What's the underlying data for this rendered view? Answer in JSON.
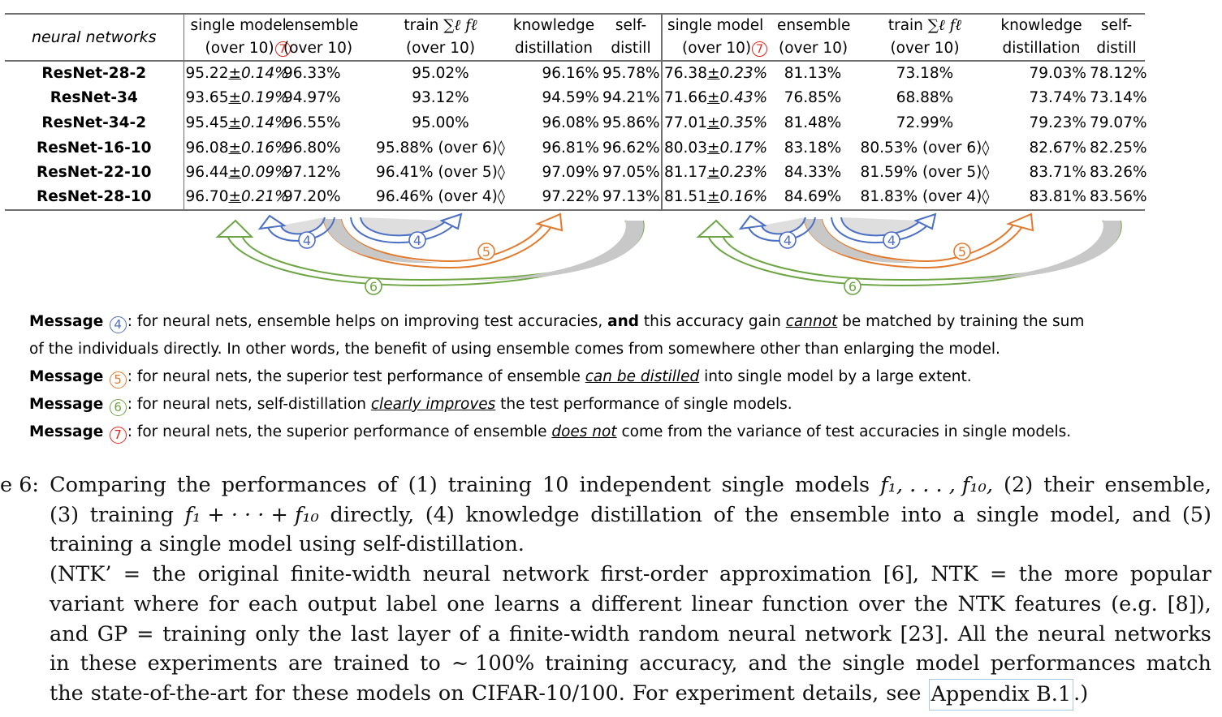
{
  "table": {
    "corner_label": "neural networks",
    "headers": {
      "single_model": [
        "single model",
        "(over 10)"
      ],
      "ensemble": [
        "ensemble",
        "(over 10)"
      ],
      "train_sum": [
        "train ",
        "(over 10)"
      ],
      "train_sum_math": "∑ℓ fℓ",
      "kd": [
        "knowledge",
        "distillation"
      ],
      "self_distill": [
        "self-",
        "distill"
      ]
    },
    "marker_7": "7",
    "rows": [
      {
        "model": "ResNet-28-2",
        "c10_single": "95.22",
        "c10_pm": "±",
        "c10_std": "0.14%",
        "c10_ens": "96.33%",
        "c10_train": "95.02%",
        "c10_kd": "96.16%",
        "c10_sd": "95.78%",
        "c100_single": "76.38",
        "c100_pm": "±",
        "c100_std": "0.23%",
        "c100_ens": "81.13%",
        "c100_train": "73.18%",
        "c100_kd": "79.03%",
        "c100_sd": "78.12%"
      },
      {
        "model": "ResNet-34",
        "c10_single": "93.65",
        "c10_pm": "±",
        "c10_std": "0.19%",
        "c10_ens": "94.97%",
        "c10_train": "93.12%",
        "c10_kd": "94.59%",
        "c10_sd": "94.21%",
        "c100_single": "71.66",
        "c100_pm": "±",
        "c100_std": "0.43%",
        "c100_ens": "76.85%",
        "c100_train": "68.88%",
        "c100_kd": "73.74%",
        "c100_sd": "73.14%"
      },
      {
        "model": "ResNet-34-2",
        "c10_single": "95.45",
        "c10_pm": "±",
        "c10_std": "0.14%",
        "c10_ens": "96.55%",
        "c10_train": "95.00%",
        "c10_kd": "96.08%",
        "c10_sd": "95.86%",
        "c100_single": "77.01",
        "c100_pm": "±",
        "c100_std": "0.35%",
        "c100_ens": "81.48%",
        "c100_train": "72.99%",
        "c100_kd": "79.23%",
        "c100_sd": "79.07%"
      },
      {
        "model": "ResNet-16-10",
        "c10_single": "96.08",
        "c10_pm": "±",
        "c10_std": "0.16%",
        "c10_ens": "96.80%",
        "c10_train": "95.88% (over 6)◊",
        "c10_kd": "96.81%",
        "c10_sd": "96.62%",
        "c100_single": "80.03",
        "c100_pm": "±",
        "c100_std": "0.17%",
        "c100_ens": "83.18%",
        "c100_train": "80.53% (over 6)◊",
        "c100_kd": "82.67%",
        "c100_sd": "82.25%"
      },
      {
        "model": "ResNet-22-10",
        "c10_single": "96.44",
        "c10_pm": "±",
        "c10_std": "0.09%",
        "c10_ens": "97.12%",
        "c10_train": "96.41% (over 5)◊",
        "c10_kd": "97.09%",
        "c10_sd": "97.05%",
        "c100_single": "81.17",
        "c100_pm": "±",
        "c100_std": "0.23%",
        "c100_ens": "84.33%",
        "c100_train": "81.59% (over 5)◊",
        "c100_kd": "83.71%",
        "c100_sd": "83.26%"
      },
      {
        "model": "ResNet-28-10",
        "c10_single": "96.70",
        "c10_pm": "±",
        "c10_std": "0.21%",
        "c10_ens": "97.20%",
        "c10_train": "96.46% (over 4)◊",
        "c10_kd": "97.22%",
        "c10_sd": "97.13%",
        "c100_single": "81.51",
        "c100_pm": "±",
        "c100_std": "0.16%",
        "c100_ens": "84.69%",
        "c100_train": "81.83% (over 4)◊",
        "c100_kd": "83.81%",
        "c100_sd": "83.56%"
      }
    ]
  },
  "arrows": {
    "labels": {
      "m4": "4",
      "m5": "5",
      "m6": "6"
    },
    "colors": {
      "blue": "#4a6fc4",
      "orange": "#e27a2e",
      "green": "#6ea544",
      "gray": "#c8c8c8"
    }
  },
  "messages": [
    {
      "label": "Message ",
      "num": "4",
      "p1": ": for neural nets, ensemble helps on improving test accuracies, ",
      "strong": "and",
      "p2": " this accuracy gain ",
      "em": "cannot",
      "p3": " be matched by training the sum"
    },
    {
      "cont": "of the individuals directly. In other words, the benefit of using ensemble comes from somewhere other than enlarging the model."
    },
    {
      "label": "Message ",
      "num": "5",
      "p1": ": for neural nets, the superior test performance of ensemble ",
      "em": "can be distilled",
      "p3": " into single model by a large extent."
    },
    {
      "label": "Message ",
      "num": "6",
      "p1": ": for neural nets, self-distillation ",
      "em": "clearly improves",
      "p3": " the test performance of single models."
    },
    {
      "label": "Message ",
      "num": "7",
      "p1": ": for neural nets, the superior performance of ensemble ",
      "em": "does not",
      "p3": " come from the variance of test accuracies in single models."
    }
  ],
  "caption": {
    "line1": [
      "e 6:",
      "Comparing",
      "the",
      "performances",
      "of",
      "(1)",
      "training",
      "10",
      "independent",
      "single",
      "models",
      "f₁, . . . , f₁₀,",
      "(2)",
      "their",
      "ensemble,"
    ],
    "line2": [
      "(3)",
      "training",
      "f₁ + · · · + f₁₀",
      "directly,",
      "(4)",
      "knowledge",
      "distillation",
      "of",
      "the",
      "ensemble",
      "into",
      "a",
      "single",
      "model,",
      "and",
      "(5)"
    ],
    "line3": "training a single model using self-distillation.",
    "line4": [
      "(NTK’",
      "=",
      "the",
      "original",
      "finite-width",
      "neural",
      "network",
      "first-order",
      "approximation",
      "[6],",
      "NTK",
      "=",
      "the",
      "more",
      "popular"
    ],
    "line5": [
      "variant",
      "where",
      "for",
      "each",
      "output",
      "label",
      "one",
      "learns",
      "a",
      "different",
      "linear",
      "function",
      "over",
      "the",
      "NTK",
      "features",
      "(e.g.",
      "[8]),"
    ],
    "line6": [
      "and",
      "GP",
      "=",
      "training",
      "only",
      "the",
      "last",
      "layer",
      "of",
      "a",
      "finite-width",
      "random",
      "neural",
      "network",
      "[23].",
      "All",
      "the",
      "neural",
      "networks"
    ],
    "line7": [
      "in",
      "these",
      "experiments",
      "are",
      "trained",
      "to",
      "∼ 100%",
      "training",
      "accuracy,",
      "and",
      "the",
      "single",
      "model",
      "performances",
      "match"
    ],
    "line8": [
      "the",
      "state-of-the-art",
      "for",
      "these",
      "models",
      "on",
      "CIFAR-10/100.",
      "For",
      "experiment",
      "details,",
      "see"
    ],
    "link": "Appendix B.1",
    "tail": ".)"
  }
}
